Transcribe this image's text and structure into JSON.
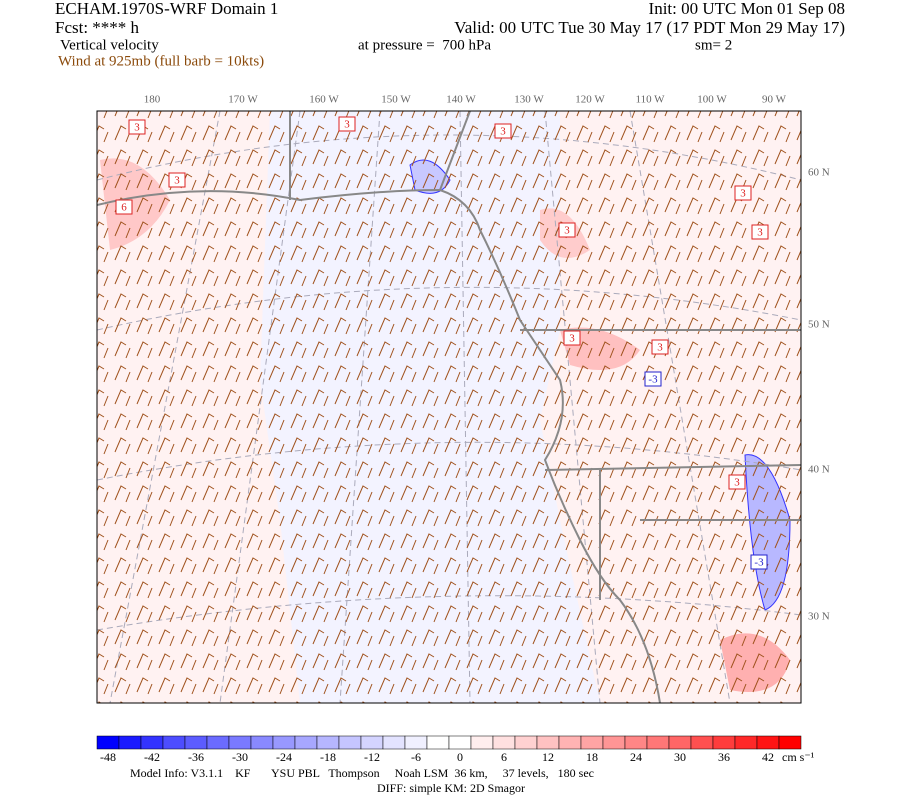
{
  "header": {
    "title": "ECHAM.1970S-WRF Domain 1",
    "init": "Init: 00 UTC Mon 01 Sep 08",
    "forecast": "Fcst: **** h",
    "valid": "Valid: 00 UTC Tue 30 May 17 (17 PDT Mon 29 May 17)",
    "field": "Vertical velocity",
    "level": "at pressure =  700 hPa",
    "smoothing": "sm= 2",
    "wind": "Wind at 925mb (full barb = 10kts)"
  },
  "map": {
    "lon_labels": [
      "180",
      "170 W",
      "160 W",
      "150 W",
      "140 W",
      "130 W",
      "120 W",
      "110 W",
      "100 W",
      "90 W"
    ],
    "lat_labels": [
      "60 N",
      "50 N",
      "40 N",
      "30 N"
    ],
    "contour_labels": [
      "3",
      "3",
      "3",
      "6",
      "3",
      "3",
      "3",
      "3",
      "3",
      "-3",
      "3",
      "-3",
      "3"
    ]
  },
  "colorbar": {
    "ticks": [
      -48,
      -42,
      -36,
      -30,
      -24,
      -18,
      -12,
      -6,
      0,
      6,
      12,
      18,
      24,
      30,
      36,
      42
    ],
    "units": "cm s⁻¹",
    "colors": [
      "#0000ff",
      "#1a1aff",
      "#3333ff",
      "#4d4dff",
      "#5c5cff",
      "#6b6bff",
      "#7a7aff",
      "#8989ff",
      "#9898ff",
      "#a7a7ff",
      "#b6b6ff",
      "#c5c5ff",
      "#d4d4ff",
      "#e3e3ff",
      "#f0f0ff",
      "#ffffff",
      "#ffffff",
      "#ffeeee",
      "#ffe0e0",
      "#ffd1d1",
      "#ffc2c2",
      "#ffb3b3",
      "#ffa4a4",
      "#ff9595",
      "#ff8686",
      "#ff7777",
      "#ff6666",
      "#ff5050",
      "#ff3c3c",
      "#ff2828",
      "#ff1414",
      "#ff0000"
    ]
  },
  "footer": {
    "model_info": "Model Info: V3.1.1    KF       YSU PBL   Thompson     Noah LSM  36 km,     37 levels,   180 sec",
    "diff": "DIFF: simple KM: 2D Smagor"
  }
}
